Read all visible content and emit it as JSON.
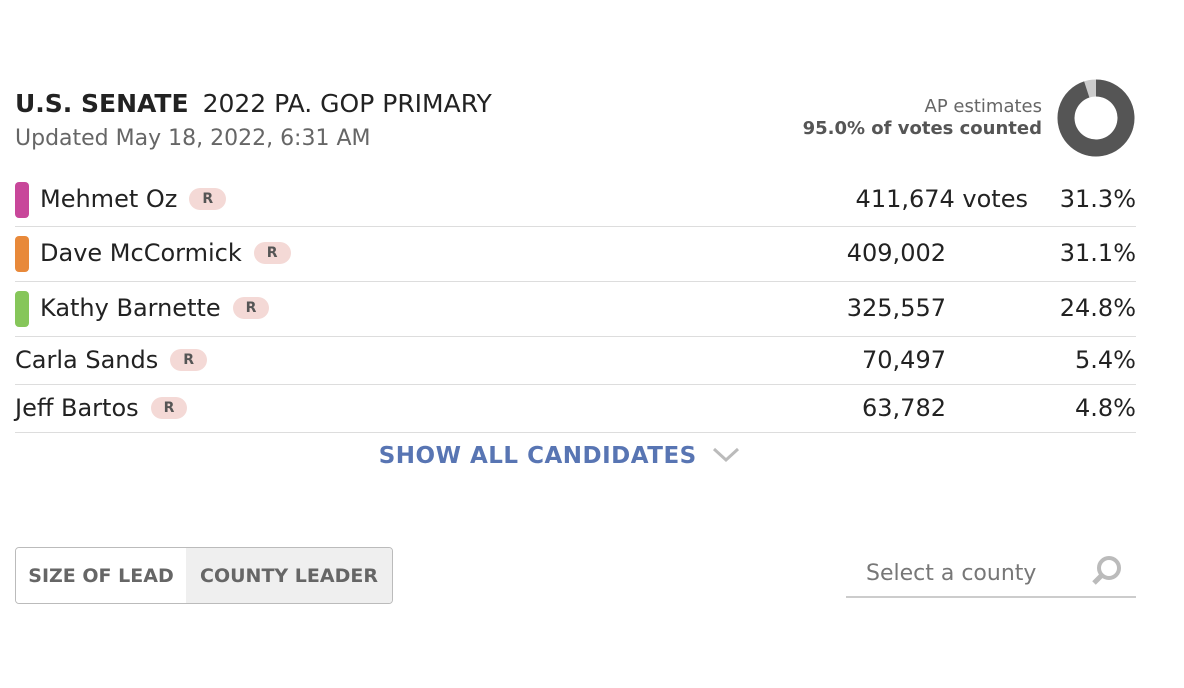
{
  "header": {
    "race": "U.S. SENATE",
    "subtitle": "2022 PA. GOP PRIMARY",
    "updated": "Updated May 18, 2022, 6:31 AM"
  },
  "estimate": {
    "label": "AP estimates",
    "counted_text": "95.0% of votes counted",
    "counted": 95.0
  },
  "candidates": [
    {
      "name": "Mehmet Oz",
      "party": "R",
      "votes": "411,674 votes",
      "pct": "31.3%",
      "color": "#c8479a"
    },
    {
      "name": "Dave McCormick",
      "party": "R",
      "votes": "409,002",
      "pct": "31.1%",
      "color": "#e8893a"
    },
    {
      "name": "Kathy Barnette",
      "party": "R",
      "votes": "325,557",
      "pct": "24.8%",
      "color": "#86c65a"
    },
    {
      "name": "Carla Sands",
      "party": "R",
      "votes": "70,497",
      "pct": "5.4%"
    },
    {
      "name": "Jeff Bartos",
      "party": "R",
      "votes": "63,782",
      "pct": "4.8%"
    }
  ],
  "show_all": "SHOW ALL CANDIDATES",
  "toggle": [
    "SIZE OF LEAD",
    "COUNTY LEADER"
  ],
  "search_placeholder": "Select a county"
}
